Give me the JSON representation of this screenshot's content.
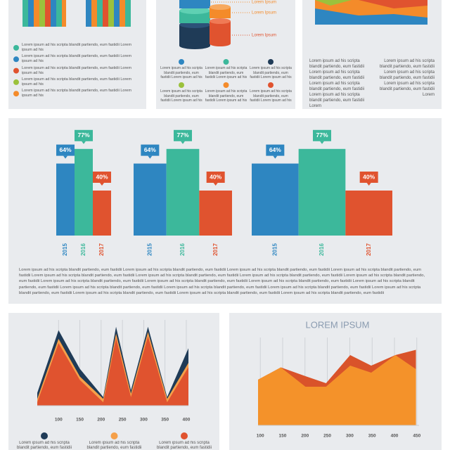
{
  "chart_data": [
    {
      "type": "bar",
      "categories": [
        "2015",
        "2016",
        "2017"
      ],
      "values": [
        64,
        77,
        40
      ],
      "value_labels": [
        "64%",
        "77%",
        "40%"
      ],
      "colors": [
        "#2e86c1",
        "#3cb89b",
        "#e0532f"
      ],
      "ylim": [
        0,
        100
      ]
    },
    {
      "type": "area",
      "x": [
        50,
        100,
        150,
        205,
        235,
        270,
        310,
        355,
        405
      ],
      "xlim": [
        50,
        405
      ],
      "xticks": [
        100,
        150,
        200,
        250,
        300,
        350,
        400
      ],
      "ylim": [
        0,
        100
      ],
      "grid": true,
      "series": [
        {
          "name": "Lorem ipsum ad his scripta blandit partiendo, eum fastidii",
          "color": "#1f3b57",
          "values": [
            15,
            88,
            43,
            10,
            92,
            18,
            92,
            10,
            67
          ]
        },
        {
          "name": "Lorem ipsum ad his scripta blandit partiendo, eum fastidii",
          "color": "#f5a04a",
          "values": [
            8,
            78,
            34,
            8,
            84,
            14,
            86,
            8,
            50
          ]
        },
        {
          "name": "Lorem ipsum ad his scripta blandit partiendo, eum fastidii",
          "color": "#e0532f",
          "values": [
            4,
            73,
            30,
            4,
            79,
            10,
            81,
            4,
            45
          ]
        }
      ]
    },
    {
      "type": "area",
      "title": "LOREM IPSUM",
      "x": [
        95,
        146,
        201,
        247,
        301,
        348,
        402,
        448
      ],
      "xlim": [
        95,
        455
      ],
      "xticks": [
        100,
        150,
        200,
        250,
        300,
        350,
        400,
        450
      ],
      "ylim": [
        0,
        100
      ],
      "grid": true,
      "series": [
        {
          "color": "#d9532a",
          "values": [
            52,
            66,
            56,
            48,
            80,
            68,
            80,
            86
          ]
        },
        {
          "color": "#f4922a",
          "values": [
            52,
            66,
            44,
            44,
            68,
            60,
            80,
            64
          ]
        }
      ]
    }
  ],
  "top_left": {
    "legend": [
      "Lorem ipsum ad his scripta blandit partiendo, eum fastidii Lorem ipsum ad his",
      "Lorem ipsum ad his scripta blandit partiendo, eum fastidii Lorem ipsum ad his",
      "Lorem ipsum ad his scripta blandit partiendo, eum fastidii Lorem ipsum ad his",
      "Lorem ipsum ad his scripta blandit partiendo, eum fastidii Lorem ipsum ad his",
      "Lorem ipsum ad his scripta blandit partiendo, eum fastidii Lorem ipsum ad his"
    ]
  },
  "top_middle": {
    "labels": [
      "Lorem Ipsum",
      "Lorem Ipsum",
      "Lorem Ipsum"
    ],
    "items": [
      "Lorem ipsum ad his scripta blandit partiendo, eum fastidii Lorem ipsum ad his",
      "Lorem ipsum ad his scripta blandit partiendo, eum fastidii Lorem ipsum ad his",
      "Lorem ipsum ad his scripta blandit partiendo, eum fastidii Lorem ipsum ad his",
      "Lorem ipsum ad his scripta blandit partiendo, eum fastidii Lorem ipsum ad his",
      "Lorem ipsum ad his scripta blandit partiendo, eum fastidii Lorem ipsum ad his",
      "Lorem ipsum ad his scripta blandit partiendo, eum fastidii Lorem ipsum ad his"
    ]
  },
  "top_right": {
    "columns": [
      "Lorem ipsum ad his scripta blandit partiendo, eum fastidii Lorem ipsum ad his scripta blandit partiendo, eum fastidii Lorem ipsum ad his scripta blandit partiendo, eum fastidii Lorem ipsum ad his scripta blandit partiendo, eum fastidii Lorem",
      "Lorem ipsum ad his scripta blandit partiendo, eum fastidii Lorem ipsum ad his scripta blandit partiendo, eum fastidii Lorem ipsum ad his scripta blandit partiendo, eum fastidii Lorem"
    ]
  },
  "bar_panel": {
    "text": "Lorem ipsum ad his scripta blandit partiendo, eum fastidii Lorem ipsum ad his scripta blandit partiendo, eum fastidii Lorem ipsum ad his scripta blandit partiendo, eum fastidii Lorem ipsum ad his scripta blandit partiendo, eum fastidii Lorem ipsum ad his scripta blandit partiendo, eum fastidii Lorem ipsum ad his scripta blandit partiendo, eum fastidii Lorem ipsum ad his scripta blandit partiendo, eum fastidii Lorem ipsum ad his scripta blandit partiendo, eum fastidii Lorem ipsum ad his scripta blandit partiendo, eum fastidii Lorem ipsum ad his scripta blandit partiendo, eum fastidii Lorem ipsum ad his scripta blandit partiendo, eum fastidii Lorem ipsum ad his scripta blandit partiendo, eum fastidii Lorem ipsum ad his scripta blandit partiendo, eum fastidii Lorem ipsum ad his scripta blandit partiendo, eum fastidii Lorem ipsum ad his scripta blandit partiendo, eum fastidii Lorem ipsum ad his scripta blandit partiendo, eum fastidii Lorem ipsum ad his scripta blandit partiendo, eum fastidii Lorem ipsum ad his scripta blandit partiendo, eum fastidii Lorem ipsum ad his scripta blandit partiendo, eum fastidii"
  }
}
